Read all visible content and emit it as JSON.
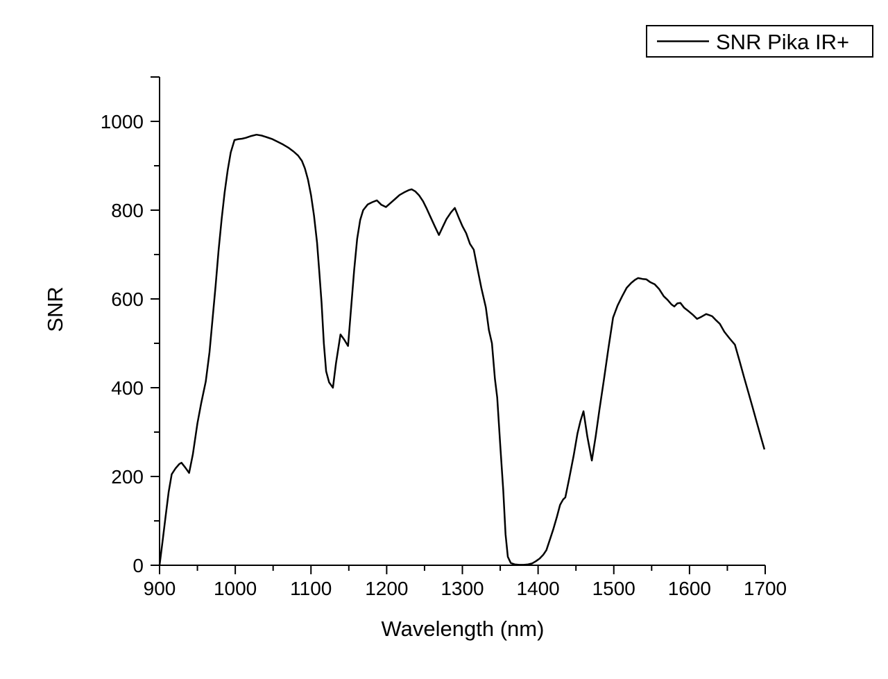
{
  "colors": {
    "curve": "#000000",
    "axis": "#000000",
    "background": "#ffffff",
    "text": "#000000"
  },
  "chart_data": {
    "type": "line",
    "title": "",
    "xlabel": "Wavelength (nm)",
    "ylabel": "SNR",
    "xlim": [
      900,
      1700
    ],
    "ylim": [
      0,
      1100
    ],
    "grid": false,
    "x_major_ticks": [
      900,
      1000,
      1100,
      1200,
      1300,
      1400,
      1500,
      1600,
      1700
    ],
    "x_minor_ticks": [
      950,
      1050,
      1150,
      1250,
      1350,
      1450,
      1550,
      1650
    ],
    "y_major_ticks": [
      0,
      200,
      400,
      600,
      800,
      1000
    ],
    "y_minor_ticks": [
      100,
      300,
      500,
      700,
      900
    ],
    "y_axis_cap": 1100,
    "legend": {
      "position": "top-right",
      "entries": [
        {
          "label": "SNR Pika IR+",
          "color": "#000000"
        }
      ]
    },
    "series": [
      {
        "name": "SNR Pika IR+",
        "points": [
          [
            900,
            0
          ],
          [
            904,
            55
          ],
          [
            908,
            110
          ],
          [
            912,
            165
          ],
          [
            916,
            205
          ],
          [
            921,
            218
          ],
          [
            926,
            228
          ],
          [
            929,
            231
          ],
          [
            934,
            220
          ],
          [
            939,
            208
          ],
          [
            944,
            250
          ],
          [
            950,
            320
          ],
          [
            955,
            365
          ],
          [
            961,
            414
          ],
          [
            966,
            480
          ],
          [
            970,
            555
          ],
          [
            974,
            630
          ],
          [
            978,
            710
          ],
          [
            982,
            780
          ],
          [
            986,
            840
          ],
          [
            990,
            890
          ],
          [
            994,
            930
          ],
          [
            999,
            958
          ],
          [
            1004,
            960
          ],
          [
            1009,
            961
          ],
          [
            1014,
            963
          ],
          [
            1021,
            967
          ],
          [
            1028,
            970
          ],
          [
            1035,
            968
          ],
          [
            1042,
            964
          ],
          [
            1049,
            960
          ],
          [
            1056,
            954
          ],
          [
            1063,
            948
          ],
          [
            1070,
            941
          ],
          [
            1077,
            932
          ],
          [
            1083,
            923
          ],
          [
            1088,
            911
          ],
          [
            1092,
            894
          ],
          [
            1096,
            869
          ],
          [
            1100,
            834
          ],
          [
            1104,
            788
          ],
          [
            1108,
            727
          ],
          [
            1111,
            660
          ],
          [
            1114,
            592
          ],
          [
            1117,
            500
          ],
          [
            1120,
            437
          ],
          [
            1124,
            412
          ],
          [
            1129,
            400
          ],
          [
            1133,
            455
          ],
          [
            1139,
            520
          ],
          [
            1144,
            508
          ],
          [
            1149,
            494
          ],
          [
            1153,
            580
          ],
          [
            1157,
            665
          ],
          [
            1161,
            735
          ],
          [
            1165,
            778
          ],
          [
            1169,
            800
          ],
          [
            1175,
            813
          ],
          [
            1181,
            818
          ],
          [
            1187,
            822
          ],
          [
            1193,
            812
          ],
          [
            1199,
            807
          ],
          [
            1205,
            816
          ],
          [
            1211,
            825
          ],
          [
            1217,
            834
          ],
          [
            1223,
            840
          ],
          [
            1229,
            845
          ],
          [
            1233,
            847
          ],
          [
            1238,
            842
          ],
          [
            1243,
            833
          ],
          [
            1248,
            820
          ],
          [
            1253,
            803
          ],
          [
            1258,
            784
          ],
          [
            1264,
            762
          ],
          [
            1269,
            744
          ],
          [
            1274,
            762
          ],
          [
            1279,
            780
          ],
          [
            1285,
            795
          ],
          [
            1290,
            805
          ],
          [
            1295,
            784
          ],
          [
            1300,
            764
          ],
          [
            1305,
            748
          ],
          [
            1310,
            724
          ],
          [
            1315,
            711
          ],
          [
            1320,
            668
          ],
          [
            1325,
            625
          ],
          [
            1331,
            581
          ],
          [
            1335,
            530
          ],
          [
            1339,
            500
          ],
          [
            1343,
            420
          ],
          [
            1346,
            378
          ],
          [
            1350,
            270
          ],
          [
            1354,
            169
          ],
          [
            1357,
            70
          ],
          [
            1360,
            19
          ],
          [
            1364,
            5
          ],
          [
            1369,
            2
          ],
          [
            1375,
            1
          ],
          [
            1381,
            1
          ],
          [
            1387,
            2
          ],
          [
            1392,
            4
          ],
          [
            1397,
            9
          ],
          [
            1402,
            15
          ],
          [
            1407,
            24
          ],
          [
            1411,
            34
          ],
          [
            1416,
            60
          ],
          [
            1420,
            81
          ],
          [
            1425,
            110
          ],
          [
            1429,
            136
          ],
          [
            1433,
            148
          ],
          [
            1436,
            153
          ],
          [
            1441,
            195
          ],
          [
            1447,
            247
          ],
          [
            1452,
            297
          ],
          [
            1456,
            325
          ],
          [
            1460,
            347
          ],
          [
            1465,
            290
          ],
          [
            1471,
            236
          ],
          [
            1476,
            290
          ],
          [
            1481,
            350
          ],
          [
            1487,
            419
          ],
          [
            1493,
            490
          ],
          [
            1499,
            558
          ],
          [
            1505,
            585
          ],
          [
            1511,
            606
          ],
          [
            1517,
            625
          ],
          [
            1523,
            636
          ],
          [
            1528,
            643
          ],
          [
            1532,
            647
          ],
          [
            1538,
            645
          ],
          [
            1543,
            644
          ],
          [
            1548,
            638
          ],
          [
            1554,
            633
          ],
          [
            1560,
            622
          ],
          [
            1566,
            606
          ],
          [
            1571,
            598
          ],
          [
            1576,
            588
          ],
          [
            1580,
            583
          ],
          [
            1584,
            590
          ],
          [
            1588,
            591
          ],
          [
            1593,
            580
          ],
          [
            1599,
            572
          ],
          [
            1604,
            565
          ],
          [
            1610,
            555
          ],
          [
            1616,
            560
          ],
          [
            1622,
            566
          ],
          [
            1627,
            563
          ],
          [
            1630,
            561
          ],
          [
            1635,
            552
          ],
          [
            1640,
            544
          ],
          [
            1646,
            526
          ],
          [
            1653,
            511
          ],
          [
            1660,
            497
          ],
          [
            1666,
            461
          ],
          [
            1672,
            424
          ],
          [
            1678,
            388
          ],
          [
            1684,
            352
          ],
          [
            1690,
            315
          ],
          [
            1695,
            285
          ],
          [
            1699,
            261
          ]
        ]
      }
    ]
  }
}
